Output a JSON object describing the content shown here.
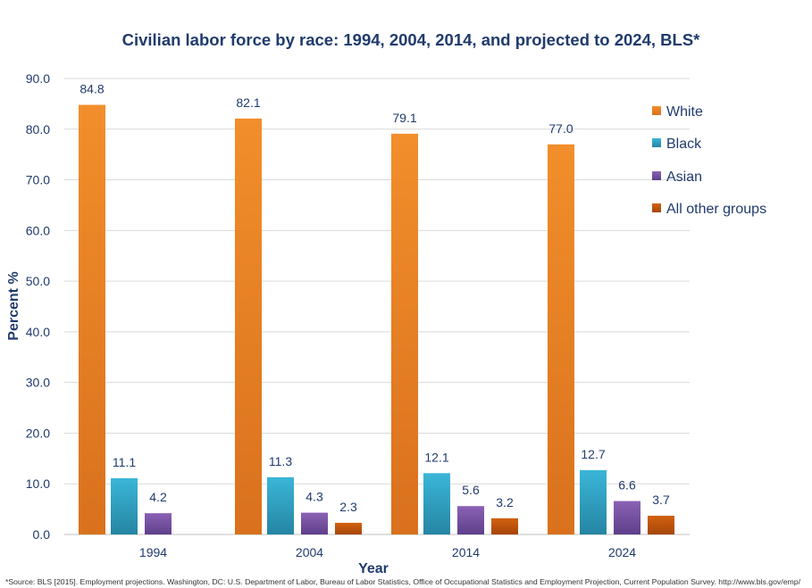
{
  "chart_data": {
    "type": "bar",
    "title": "Civilian labor force by race: 1994,  2004, 2014, and projected to 2024, BLS*",
    "xlabel": "Year",
    "ylabel": "Percent %",
    "ylim": [
      0,
      90
    ],
    "yticks": [
      "0.0",
      "10.0",
      "20.0",
      "30.0",
      "40.0",
      "50.0",
      "60.0",
      "70.0",
      "80.0",
      "90.0"
    ],
    "grid": true,
    "legend_position": "right",
    "categories": [
      "1994",
      "2004",
      "2014",
      "2024"
    ],
    "series": [
      {
        "name": "White",
        "values": [
          84.8,
          82.1,
          79.1,
          77.0
        ],
        "labels": [
          "84.8",
          "82.1",
          "79.1",
          "77.0"
        ],
        "color": "#f28e2b",
        "color_dark": "#d9711d"
      },
      {
        "name": "Black",
        "values": [
          11.1,
          11.3,
          12.1,
          12.7
        ],
        "labels": [
          "11.1",
          "11.3",
          "12.1",
          "12.7"
        ],
        "color": "#3bb6d8",
        "color_dark": "#2585a3"
      },
      {
        "name": "Asian",
        "values": [
          4.2,
          4.3,
          5.6,
          6.6
        ],
        "labels": [
          "4.2",
          "4.3",
          "5.6",
          "6.6"
        ],
        "color": "#8b62b5",
        "color_dark": "#5e3f8a"
      },
      {
        "name": "All other groups",
        "values": [
          null,
          2.3,
          3.2,
          3.7
        ],
        "labels": [
          null,
          "2.3",
          "3.2",
          "3.7"
        ],
        "color": "#d2620f",
        "color_dark": "#a6460a"
      }
    ],
    "footnote": "*Source: BLS [2015]. Employment projections.  Washington,  DC: U.S. Department  of Labor, Bureau  of Labor Statistics, Office of Occupational Statistics and Employment  Projection, Current Population Survey.  http://www.bls.gov/emp/"
  },
  "colors": {
    "title": "#1f3b6e",
    "text": "#1f3b6e",
    "grid": "#d9d9d9"
  }
}
